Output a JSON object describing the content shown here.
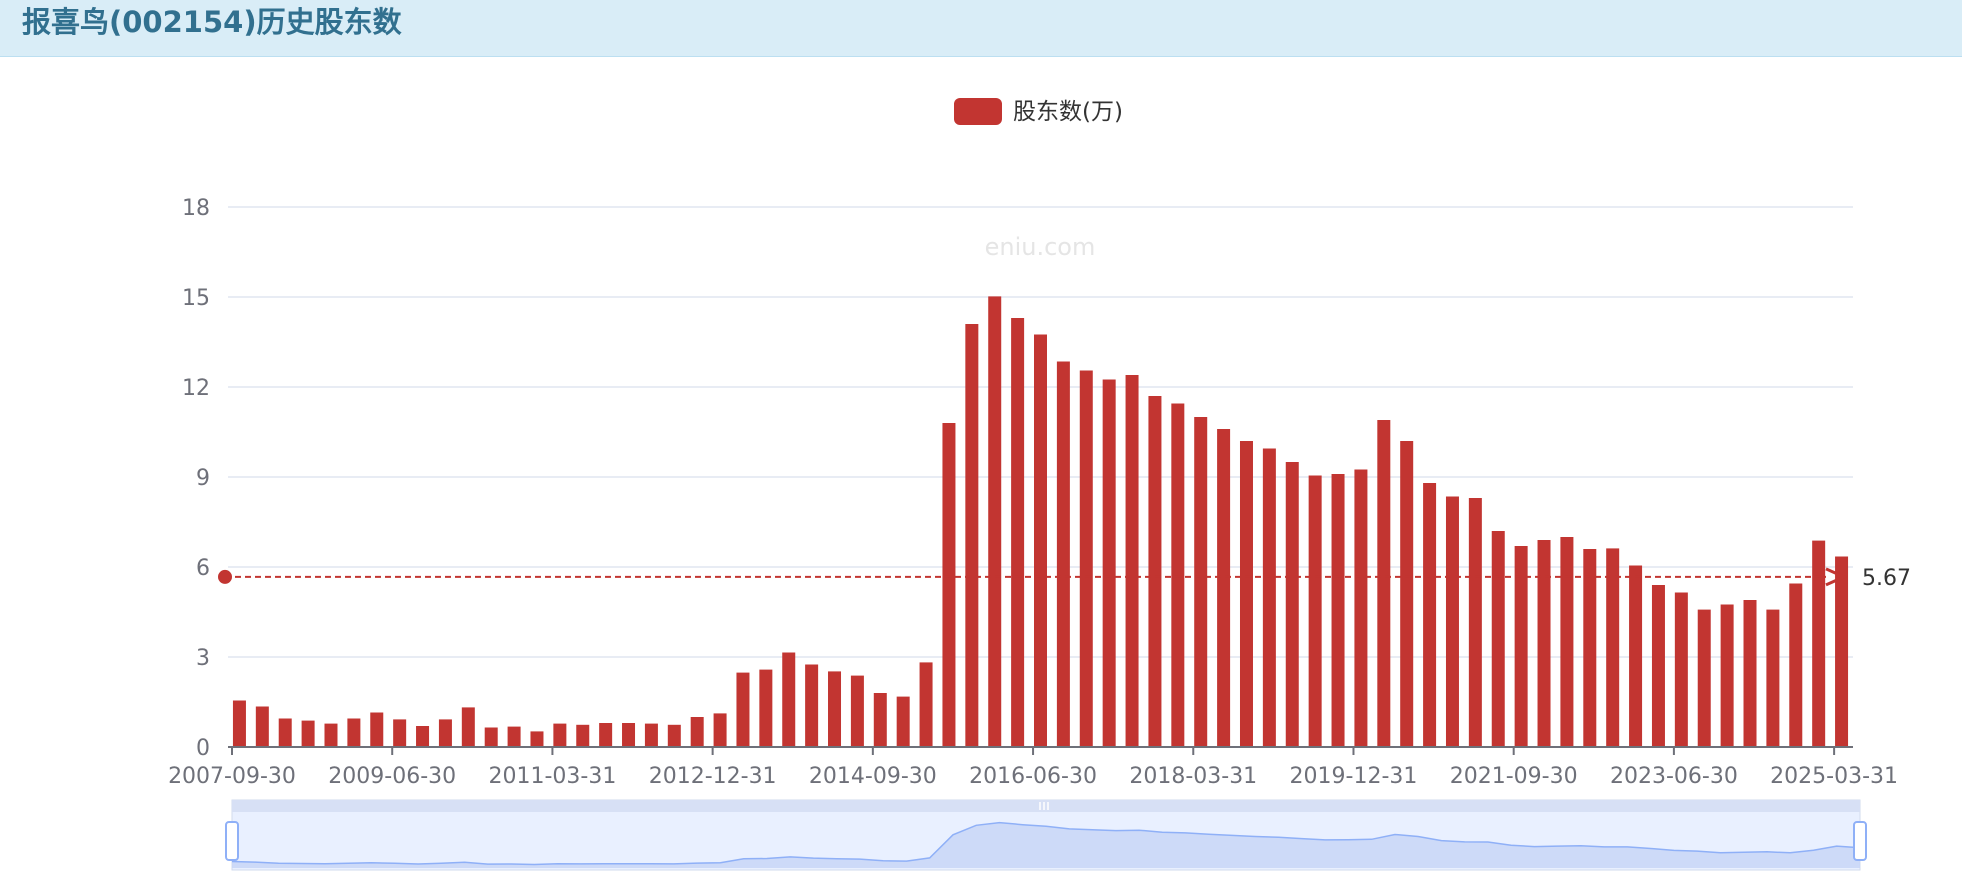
{
  "header": {
    "title": "报喜鸟(002154)历史股东数"
  },
  "watermark": "eniu.com",
  "colors": {
    "bar": "#c23531",
    "header_bg": "#d9edf7",
    "title": "#31708f",
    "grid": "#e0e6f1",
    "axis_text": "#6e7079"
  },
  "chart_data": {
    "type": "bar",
    "legend": [
      "股东数(万)"
    ],
    "legend_position": "top-center",
    "grid": true,
    "ylim": [
      0,
      18
    ],
    "yticks": [
      0,
      3,
      6,
      9,
      12,
      15,
      18
    ],
    "x_tick_labels": [
      "2007-09-30",
      "2009-06-30",
      "2011-03-31",
      "2012-12-31",
      "2014-09-30",
      "2016-06-30",
      "2018-03-31",
      "2019-12-31",
      "2021-09-30",
      "2023-06-30",
      "2025-03-31"
    ],
    "mark_line": {
      "label": "5.67",
      "value": 5.67
    },
    "series": [
      {
        "name": "股东数(万)",
        "values": [
          1.55,
          1.35,
          0.95,
          0.88,
          0.78,
          0.95,
          1.15,
          0.92,
          0.7,
          0.92,
          1.32,
          0.65,
          0.68,
          0.52,
          0.78,
          0.74,
          0.8,
          0.8,
          0.78,
          0.74,
          1.0,
          1.12,
          2.48,
          2.58,
          3.15,
          2.75,
          2.52,
          2.38,
          1.8,
          1.68,
          2.82,
          10.8,
          14.1,
          15.02,
          14.3,
          13.75,
          12.85,
          12.55,
          12.25,
          12.4,
          11.7,
          11.45,
          11.0,
          10.6,
          10.2,
          9.95,
          9.5,
          9.05,
          9.1,
          9.25,
          10.9,
          10.2,
          8.8,
          8.35,
          8.3,
          7.2,
          6.7,
          6.9,
          7.0,
          6.6,
          6.62,
          6.05,
          5.4,
          5.15,
          4.58,
          4.75,
          4.9,
          4.58,
          5.45,
          6.88,
          6.35
        ]
      }
    ]
  },
  "slider": {
    "range": [
      0,
      100
    ]
  }
}
